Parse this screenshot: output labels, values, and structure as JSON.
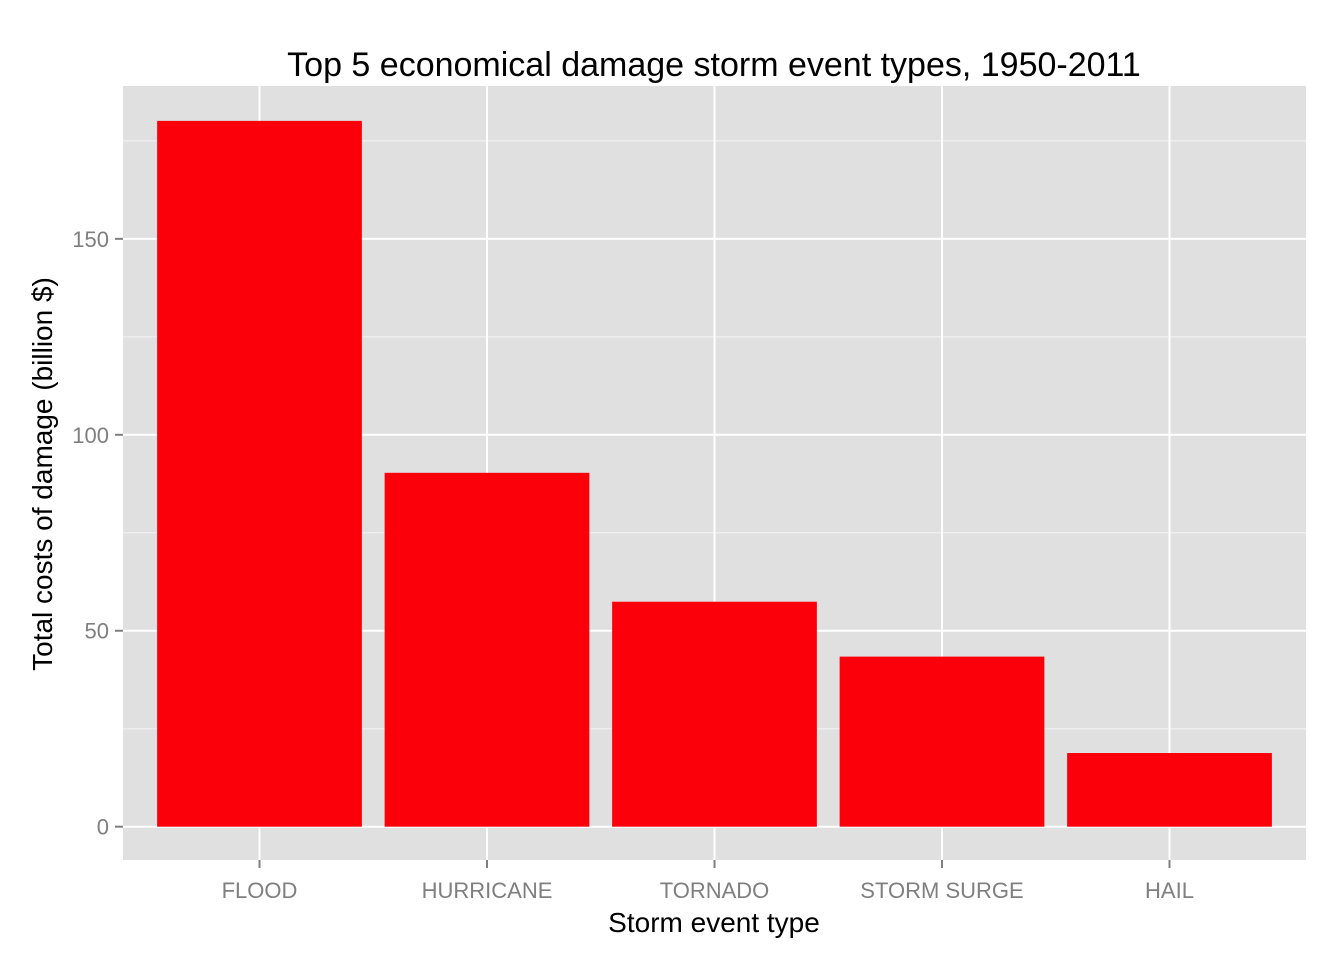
{
  "chart_data": {
    "type": "bar",
    "title": "Top 5 economical damage storm event types, 1950-2011",
    "xlabel": "Storm event type",
    "ylabel": "Total costs of damage (billion $)",
    "categories": [
      "FLOOD",
      "HURRICANE",
      "TORNADO",
      "STORM SURGE",
      "HAIL"
    ],
    "values": [
      180.1,
      90.3,
      57.4,
      43.4,
      18.8
    ],
    "ylim": [
      -8.5,
      189
    ],
    "yticks": [
      0,
      50,
      100,
      150
    ],
    "ytick_labels": [
      "0",
      "50",
      "100",
      "150"
    ],
    "grid": true,
    "bar_color": "#fb000b",
    "panel_color": "#e0e0e0",
    "grid_color": "#ffffff"
  }
}
